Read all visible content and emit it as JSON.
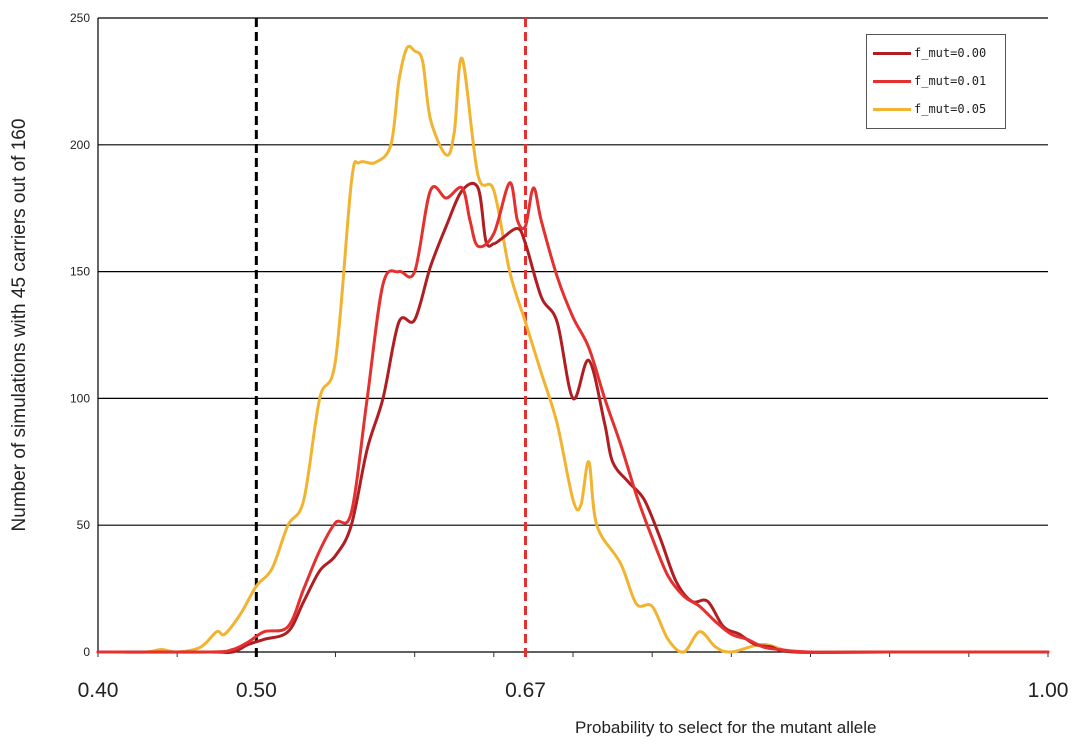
{
  "chart_data": {
    "type": "line",
    "title": "",
    "xlabel": "Probability to select for the mutant allele",
    "ylabel": "Number of simulations with 45 carriers out of 160",
    "xlim": [
      0.4,
      1.0
    ],
    "ylim": [
      0,
      250
    ],
    "x_tick_labels": [
      {
        "value": 0.4,
        "label": "0.40"
      },
      {
        "value": 0.5,
        "label": "0.50"
      },
      {
        "value": 0.67,
        "label": "0.67"
      },
      {
        "value": 1.0,
        "label": "1.00"
      }
    ],
    "y_ticks": [
      0,
      50,
      100,
      150,
      200,
      250
    ],
    "grid": "horizontal",
    "legend_position": "top-right",
    "reference_lines": [
      {
        "x": 0.5,
        "color": "#000000",
        "style": "dashed"
      },
      {
        "x": 0.67,
        "color": "#e53030",
        "style": "dashed"
      }
    ],
    "series": [
      {
        "name": "f_mut=0.00",
        "color": "#b01e23",
        "points": [
          [
            0.4,
            0
          ],
          [
            0.47,
            0
          ],
          [
            0.485,
            0
          ],
          [
            0.495,
            3
          ],
          [
            0.505,
            5
          ],
          [
            0.52,
            8
          ],
          [
            0.53,
            20
          ],
          [
            0.54,
            32
          ],
          [
            0.55,
            38
          ],
          [
            0.56,
            50
          ],
          [
            0.57,
            80
          ],
          [
            0.58,
            100
          ],
          [
            0.59,
            130
          ],
          [
            0.6,
            131
          ],
          [
            0.61,
            152
          ],
          [
            0.62,
            168
          ],
          [
            0.63,
            182
          ],
          [
            0.64,
            183
          ],
          [
            0.645,
            162
          ],
          [
            0.65,
            161
          ],
          [
            0.655,
            163
          ],
          [
            0.665,
            167
          ],
          [
            0.67,
            161
          ],
          [
            0.68,
            140
          ],
          [
            0.69,
            130
          ],
          [
            0.7,
            100
          ],
          [
            0.71,
            115
          ],
          [
            0.72,
            90
          ],
          [
            0.725,
            75
          ],
          [
            0.735,
            67
          ],
          [
            0.745,
            60
          ],
          [
            0.755,
            45
          ],
          [
            0.765,
            28
          ],
          [
            0.775,
            20
          ],
          [
            0.785,
            20
          ],
          [
            0.795,
            10
          ],
          [
            0.805,
            7
          ],
          [
            0.815,
            3
          ],
          [
            0.825,
            2
          ],
          [
            0.84,
            0
          ],
          [
            0.9,
            0
          ],
          [
            1.0,
            0
          ]
        ]
      },
      {
        "name": "f_mut=0.01",
        "color": "#e53030",
        "points": [
          [
            0.4,
            0
          ],
          [
            0.47,
            0
          ],
          [
            0.485,
            1
          ],
          [
            0.495,
            4
          ],
          [
            0.505,
            8
          ],
          [
            0.52,
            10
          ],
          [
            0.53,
            25
          ],
          [
            0.54,
            40
          ],
          [
            0.55,
            51
          ],
          [
            0.56,
            55
          ],
          [
            0.57,
            100
          ],
          [
            0.58,
            145
          ],
          [
            0.59,
            150
          ],
          [
            0.6,
            150
          ],
          [
            0.61,
            182
          ],
          [
            0.62,
            179
          ],
          [
            0.63,
            183
          ],
          [
            0.635,
            170
          ],
          [
            0.64,
            160
          ],
          [
            0.65,
            165
          ],
          [
            0.66,
            185
          ],
          [
            0.665,
            170
          ],
          [
            0.67,
            168
          ],
          [
            0.675,
            183
          ],
          [
            0.68,
            170
          ],
          [
            0.69,
            148
          ],
          [
            0.7,
            132
          ],
          [
            0.71,
            120
          ],
          [
            0.72,
            100
          ],
          [
            0.73,
            82
          ],
          [
            0.74,
            62
          ],
          [
            0.75,
            45
          ],
          [
            0.76,
            30
          ],
          [
            0.77,
            22
          ],
          [
            0.78,
            18
          ],
          [
            0.79,
            12
          ],
          [
            0.8,
            7
          ],
          [
            0.81,
            5
          ],
          [
            0.82,
            2
          ],
          [
            0.83,
            1
          ],
          [
            0.85,
            0
          ],
          [
            0.9,
            0
          ],
          [
            1.0,
            0
          ]
        ]
      },
      {
        "name": "f_mut=0.05",
        "color": "#f2b430",
        "points": [
          [
            0.4,
            0
          ],
          [
            0.43,
            0
          ],
          [
            0.44,
            1
          ],
          [
            0.45,
            0
          ],
          [
            0.465,
            2
          ],
          [
            0.475,
            8
          ],
          [
            0.48,
            7
          ],
          [
            0.49,
            15
          ],
          [
            0.5,
            26
          ],
          [
            0.51,
            33
          ],
          [
            0.52,
            50
          ],
          [
            0.53,
            60
          ],
          [
            0.54,
            100
          ],
          [
            0.55,
            115
          ],
          [
            0.56,
            185
          ],
          [
            0.565,
            193
          ],
          [
            0.575,
            193
          ],
          [
            0.585,
            200
          ],
          [
            0.59,
            225
          ],
          [
            0.595,
            238
          ],
          [
            0.6,
            237
          ],
          [
            0.605,
            233
          ],
          [
            0.61,
            210
          ],
          [
            0.62,
            196
          ],
          [
            0.625,
            205
          ],
          [
            0.63,
            234
          ],
          [
            0.64,
            188
          ],
          [
            0.65,
            182
          ],
          [
            0.66,
            150
          ],
          [
            0.67,
            130
          ],
          [
            0.68,
            110
          ],
          [
            0.69,
            90
          ],
          [
            0.7,
            60
          ],
          [
            0.705,
            58
          ],
          [
            0.71,
            75
          ],
          [
            0.715,
            50
          ],
          [
            0.73,
            35
          ],
          [
            0.74,
            19
          ],
          [
            0.75,
            18
          ],
          [
            0.76,
            5
          ],
          [
            0.77,
            0
          ],
          [
            0.78,
            8
          ],
          [
            0.79,
            2
          ],
          [
            0.8,
            0
          ],
          [
            0.82,
            3
          ],
          [
            0.84,
            0
          ],
          [
            0.88,
            0
          ],
          [
            1.0,
            0
          ]
        ]
      }
    ]
  }
}
